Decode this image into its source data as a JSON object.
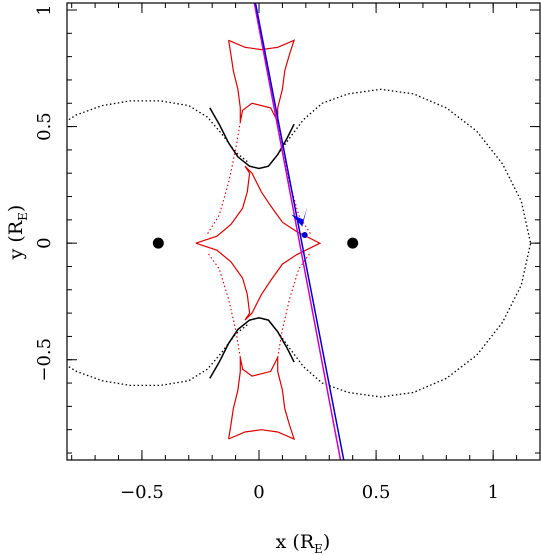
{
  "chart_data": {
    "type": "line",
    "xlabel": {
      "base": "x (R",
      "sub": "E",
      "close": ")"
    },
    "ylabel": {
      "base": "y (R",
      "sub": "E",
      "close": ")"
    },
    "xlim": [
      -0.82,
      1.2
    ],
    "ylim": [
      -0.93,
      1.03
    ],
    "xticks": [
      {
        "value": -0.5,
        "label": "−0.5"
      },
      {
        "value": 0,
        "label": "0"
      },
      {
        "value": 0.5,
        "label": "0.5"
      },
      {
        "value": 1,
        "label": "1"
      }
    ],
    "yticks": [
      {
        "value": -0.5,
        "label": "−0.5"
      },
      {
        "value": 0,
        "label": "0"
      },
      {
        "value": 0.5,
        "label": "0.5"
      },
      {
        "value": 1,
        "label": "1"
      }
    ],
    "lenses": [
      {
        "x": -0.43,
        "y": 0
      },
      {
        "x": 0.4,
        "y": 0
      }
    ],
    "source": {
      "x": 0.195,
      "y": 0.035
    },
    "trajectories": [
      {
        "color": "#0000cc",
        "from": {
          "x": -0.015,
          "y": 1.03
        },
        "to": {
          "x": 0.362,
          "y": -0.93
        }
      },
      {
        "color": "#cc00cc",
        "from": {
          "x": -0.02,
          "y": 1.03
        },
        "to": {
          "x": 0.348,
          "y": -0.93
        }
      }
    ],
    "arrow": {
      "x": 0.185,
      "y": 0.08,
      "color": "#0000ee"
    },
    "caustic": {
      "color": "#dd0000",
      "cusps": [
        {
          "x": -0.27,
          "y": 0
        },
        {
          "x": 0.26,
          "y": 0
        },
        {
          "x": -0.13,
          "y": 0.87
        },
        {
          "x": 0.15,
          "y": 0.87
        },
        {
          "x": -0.13,
          "y": -0.84
        },
        {
          "x": 0.15,
          "y": -0.84
        }
      ]
    },
    "critical_curve_color": "#000000"
  }
}
